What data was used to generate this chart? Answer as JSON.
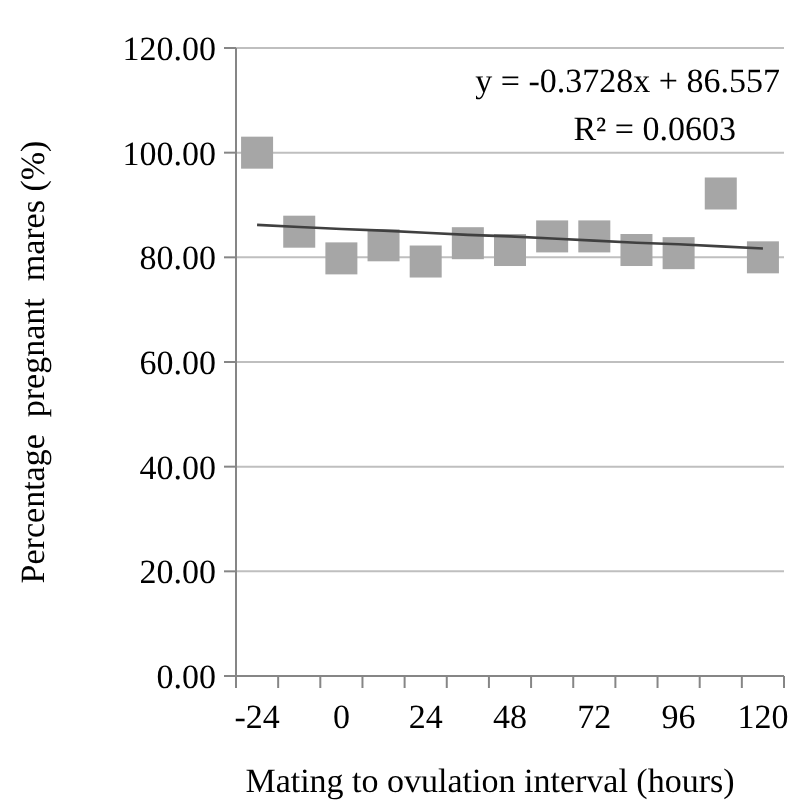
{
  "chart_data": {
    "type": "scatter",
    "xlabel": "Mating to ovulation interval (hours)",
    "ylabel": "Percentage  pregnant  mares (%)",
    "categories": [
      "-24",
      null,
      "0",
      null,
      "24",
      null,
      "48",
      null,
      "72",
      null,
      "96",
      null,
      "120"
    ],
    "series": [
      {
        "color": "#a6a6a6",
        "marker": "square",
        "values": [
          100,
          84.9,
          79.8,
          82.3,
          79.2,
          82.7,
          81.4,
          84.0,
          84.0,
          81.4,
          80.8,
          92.2,
          80.0
        ]
      },
      {
        "type": "line",
        "color": "#404040",
        "values": [
          86.2,
          85.8,
          85.4,
          85.1,
          84.7,
          84.3,
          84.0,
          83.6,
          83.2,
          82.8,
          82.5,
          82.1,
          81.7
        ]
      }
    ],
    "ylim": [
      0,
      120
    ],
    "yticks": [
      {
        "value": 0,
        "label": "0.00"
      },
      {
        "value": 20,
        "label": "20.00"
      },
      {
        "value": 40,
        "label": "40.00"
      },
      {
        "value": 60,
        "label": "60.00"
      },
      {
        "value": 80,
        "label": "80.00"
      },
      {
        "value": 100,
        "label": "100.00"
      },
      {
        "value": 120,
        "label": "120.00"
      }
    ],
    "grid": "y",
    "annotations": [
      "y = -0.3728x + 86.557",
      "R² = 0.0603"
    ]
  }
}
